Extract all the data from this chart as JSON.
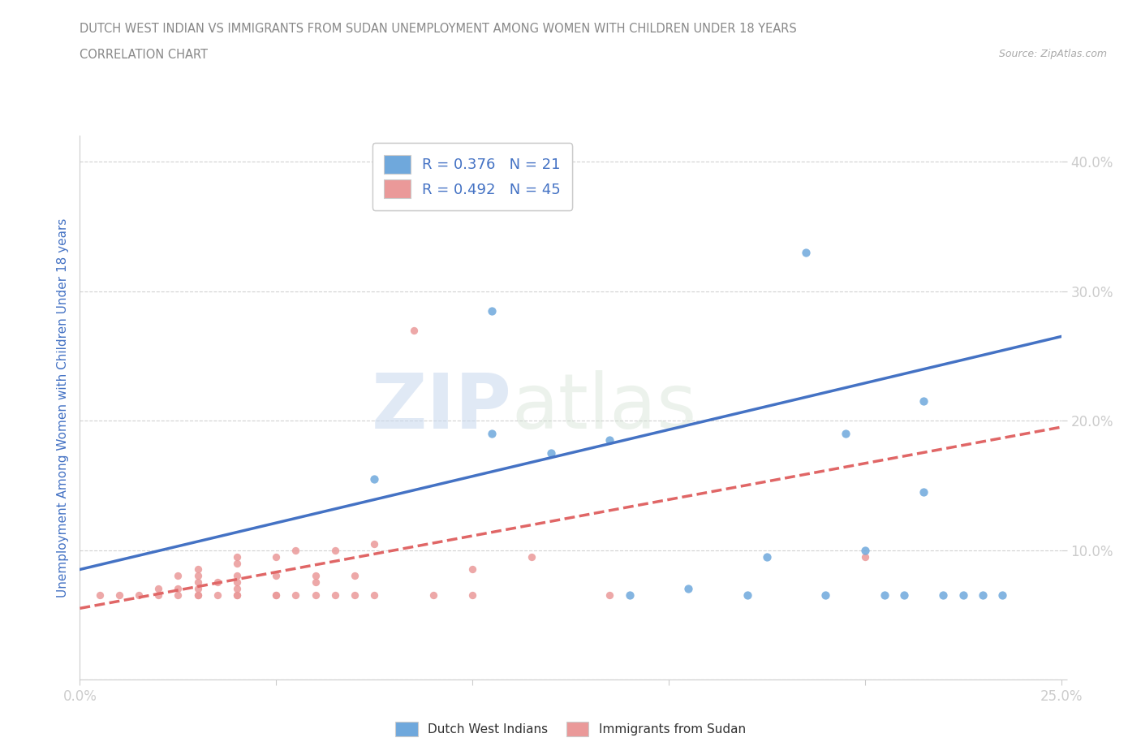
{
  "title_line1": "DUTCH WEST INDIAN VS IMMIGRANTS FROM SUDAN UNEMPLOYMENT AMONG WOMEN WITH CHILDREN UNDER 18 YEARS",
  "title_line2": "CORRELATION CHART",
  "source": "Source: ZipAtlas.com",
  "ylabel": "Unemployment Among Women with Children Under 18 years",
  "xlim": [
    0.0,
    0.25
  ],
  "ylim": [
    0.0,
    0.42
  ],
  "xticks": [
    0.0,
    0.05,
    0.1,
    0.15,
    0.2,
    0.25
  ],
  "yticks": [
    0.0,
    0.1,
    0.2,
    0.3,
    0.4
  ],
  "blue_color": "#6fa8dc",
  "pink_color": "#ea9999",
  "blue_line_color": "#4472c4",
  "pink_line_color": "#e06666",
  "watermark_zip": "ZIP",
  "watermark_atlas": "atlas",
  "legend_R1": "R = 0.376",
  "legend_N1": "N = 21",
  "legend_R2": "R = 0.492",
  "legend_N2": "N = 45",
  "blue_scatter_x": [
    0.075,
    0.105,
    0.105,
    0.12,
    0.135,
    0.14,
    0.155,
    0.17,
    0.175,
    0.185,
    0.19,
    0.195,
    0.2,
    0.205,
    0.21,
    0.215,
    0.215,
    0.22,
    0.225,
    0.23,
    0.235
  ],
  "blue_scatter_y": [
    0.155,
    0.285,
    0.19,
    0.175,
    0.185,
    0.065,
    0.07,
    0.065,
    0.095,
    0.33,
    0.065,
    0.19,
    0.1,
    0.065,
    0.065,
    0.145,
    0.215,
    0.065,
    0.065,
    0.065,
    0.065
  ],
  "pink_scatter_x": [
    0.005,
    0.01,
    0.015,
    0.02,
    0.02,
    0.025,
    0.025,
    0.025,
    0.03,
    0.03,
    0.03,
    0.03,
    0.03,
    0.03,
    0.035,
    0.035,
    0.04,
    0.04,
    0.04,
    0.04,
    0.04,
    0.04,
    0.04,
    0.05,
    0.05,
    0.05,
    0.05,
    0.055,
    0.055,
    0.06,
    0.06,
    0.06,
    0.065,
    0.065,
    0.07,
    0.07,
    0.075,
    0.075,
    0.085,
    0.09,
    0.1,
    0.1,
    0.115,
    0.135,
    0.2
  ],
  "pink_scatter_y": [
    0.065,
    0.065,
    0.065,
    0.065,
    0.07,
    0.065,
    0.07,
    0.08,
    0.065,
    0.065,
    0.07,
    0.075,
    0.08,
    0.085,
    0.065,
    0.075,
    0.065,
    0.065,
    0.07,
    0.075,
    0.08,
    0.09,
    0.095,
    0.065,
    0.065,
    0.08,
    0.095,
    0.065,
    0.1,
    0.065,
    0.075,
    0.08,
    0.065,
    0.1,
    0.065,
    0.08,
    0.065,
    0.105,
    0.27,
    0.065,
    0.065,
    0.085,
    0.095,
    0.065,
    0.095
  ],
  "blue_trend_x": [
    0.0,
    0.25
  ],
  "blue_trend_y": [
    0.085,
    0.265
  ],
  "pink_trend_x": [
    0.0,
    0.25
  ],
  "pink_trend_y": [
    0.055,
    0.195
  ],
  "background_color": "#ffffff",
  "grid_color": "#cccccc",
  "title_color": "#888888",
  "axis_color": "#4472c4",
  "tick_color": "#4472c4",
  "source_color": "#aaaaaa"
}
